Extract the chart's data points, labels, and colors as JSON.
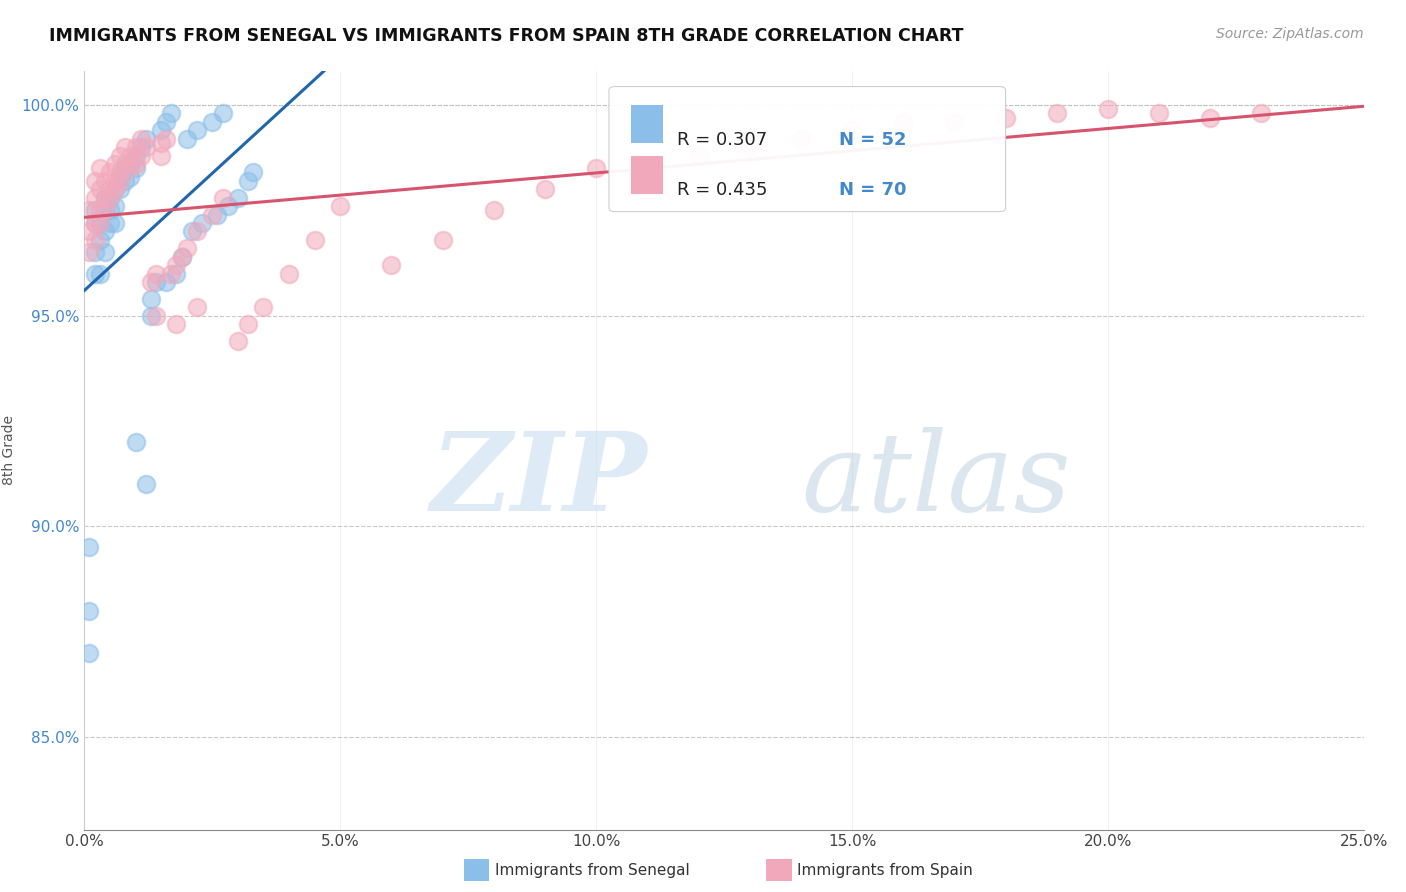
{
  "title": "IMMIGRANTS FROM SENEGAL VS IMMIGRANTS FROM SPAIN 8TH GRADE CORRELATION CHART",
  "source": "Source: ZipAtlas.com",
  "ylabel": "8th Grade",
  "legend_label1": "Immigrants from Senegal",
  "legend_label2": "Immigrants from Spain",
  "R1": 0.307,
  "N1": 52,
  "R2": 0.435,
  "N2": 70,
  "xlim": [
    0.0,
    0.25
  ],
  "ylim": [
    0.828,
    1.008
  ],
  "xticks": [
    0.0,
    0.05,
    0.1,
    0.15,
    0.2,
    0.25
  ],
  "yticks": [
    0.85,
    0.9,
    0.95,
    1.0
  ],
  "xtick_labels": [
    "0.0%",
    "5.0%",
    "10.0%",
    "15.0%",
    "20.0%",
    "25.0%"
  ],
  "ytick_labels": [
    "85.0%",
    "90.0%",
    "95.0%",
    "100.0%"
  ],
  "color_senegal": "#8bbee8",
  "color_spain": "#f2a8bb",
  "color_senegal_line": "#2166ac",
  "color_spain_line": "#d6546e",
  "background": "#ffffff",
  "senegal_x": [
    0.001,
    0.001,
    0.001,
    0.002,
    0.002,
    0.002,
    0.002,
    0.003,
    0.003,
    0.003,
    0.004,
    0.004,
    0.004,
    0.004,
    0.005,
    0.005,
    0.005,
    0.006,
    0.006,
    0.006,
    0.007,
    0.007,
    0.008,
    0.008,
    0.009,
    0.009,
    0.01,
    0.01,
    0.011,
    0.012,
    0.013,
    0.013,
    0.014,
    0.015,
    0.016,
    0.016,
    0.017,
    0.018,
    0.019,
    0.02,
    0.021,
    0.022,
    0.023,
    0.025,
    0.026,
    0.027,
    0.028,
    0.03,
    0.032,
    0.033,
    0.01,
    0.012
  ],
  "senegal_y": [
    0.88,
    0.87,
    0.895,
    0.972,
    0.965,
    0.975,
    0.96,
    0.972,
    0.968,
    0.96,
    0.978,
    0.97,
    0.975,
    0.965,
    0.978,
    0.975,
    0.972,
    0.98,
    0.976,
    0.972,
    0.983,
    0.98,
    0.985,
    0.982,
    0.986,
    0.983,
    0.988,
    0.985,
    0.99,
    0.992,
    0.954,
    0.95,
    0.958,
    0.994,
    0.996,
    0.958,
    0.998,
    0.96,
    0.964,
    0.992,
    0.97,
    0.994,
    0.972,
    0.996,
    0.974,
    0.998,
    0.976,
    0.978,
    0.982,
    0.984,
    0.92,
    0.91
  ],
  "spain_x": [
    0.001,
    0.001,
    0.001,
    0.002,
    0.002,
    0.002,
    0.002,
    0.003,
    0.003,
    0.003,
    0.003,
    0.004,
    0.004,
    0.004,
    0.005,
    0.005,
    0.005,
    0.006,
    0.006,
    0.006,
    0.007,
    0.007,
    0.007,
    0.008,
    0.008,
    0.009,
    0.009,
    0.01,
    0.01,
    0.011,
    0.011,
    0.012,
    0.013,
    0.014,
    0.015,
    0.015,
    0.016,
    0.017,
    0.018,
    0.019,
    0.02,
    0.022,
    0.025,
    0.027,
    0.03,
    0.032,
    0.035,
    0.04,
    0.045,
    0.05,
    0.06,
    0.07,
    0.08,
    0.09,
    0.1,
    0.12,
    0.13,
    0.14,
    0.15,
    0.16,
    0.17,
    0.18,
    0.19,
    0.2,
    0.21,
    0.22,
    0.23,
    0.014,
    0.018,
    0.022
  ],
  "spain_y": [
    0.97,
    0.975,
    0.965,
    0.972,
    0.978,
    0.968,
    0.982,
    0.975,
    0.98,
    0.972,
    0.985,
    0.978,
    0.982,
    0.975,
    0.98,
    0.984,
    0.978,
    0.982,
    0.986,
    0.98,
    0.984,
    0.988,
    0.982,
    0.986,
    0.99,
    0.988,
    0.985,
    0.99,
    0.986,
    0.988,
    0.992,
    0.99,
    0.958,
    0.96,
    0.991,
    0.988,
    0.992,
    0.96,
    0.962,
    0.964,
    0.966,
    0.97,
    0.974,
    0.978,
    0.944,
    0.948,
    0.952,
    0.96,
    0.968,
    0.976,
    0.962,
    0.968,
    0.975,
    0.98,
    0.985,
    0.988,
    0.99,
    0.992,
    0.994,
    0.996,
    0.996,
    0.997,
    0.998,
    0.999,
    0.998,
    0.997,
    0.998,
    0.95,
    0.948,
    0.952
  ]
}
